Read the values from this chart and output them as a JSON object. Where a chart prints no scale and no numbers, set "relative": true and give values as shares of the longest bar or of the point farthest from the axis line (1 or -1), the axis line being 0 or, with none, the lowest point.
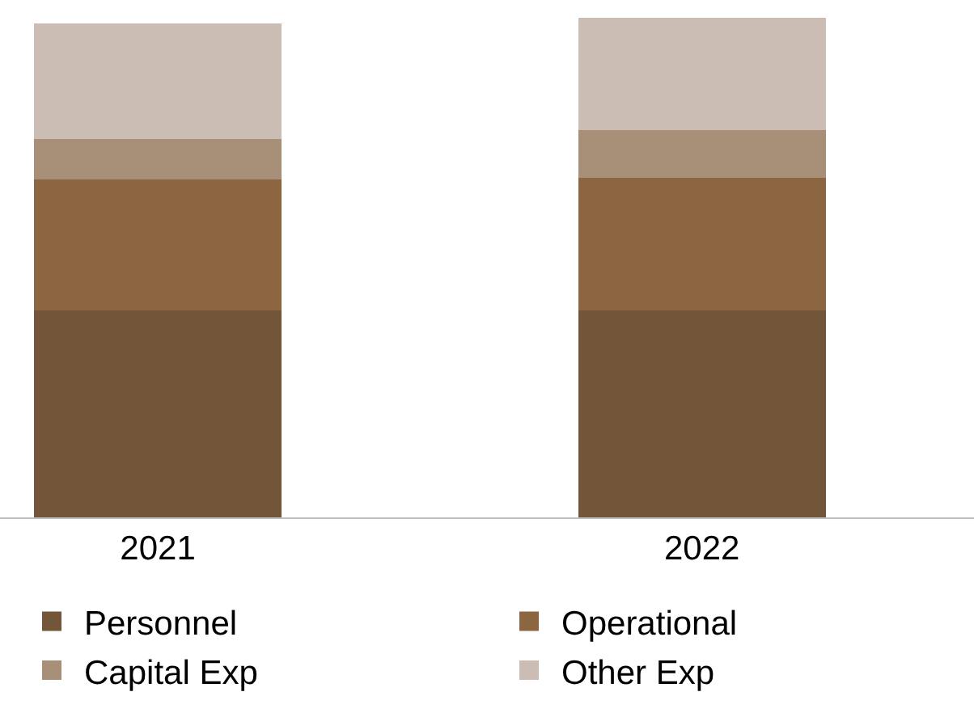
{
  "chart_data": {
    "type": "bar",
    "stacked": true,
    "relative": true,
    "categories": [
      "2021",
      "2022"
    ],
    "series": [
      {
        "name": "Personnel",
        "color": "#735539",
        "values": [
          0.415,
          0.415
        ]
      },
      {
        "name": "Operational",
        "color": "#8b6640",
        "values": [
          0.262,
          0.265
        ]
      },
      {
        "name": "Capital Exp",
        "color": "#a89078",
        "values": [
          0.08,
          0.096
        ]
      },
      {
        "name": "Other Exp",
        "color": "#cbbdb3",
        "values": [
          0.233,
          0.224
        ]
      }
    ],
    "legend": "bottom"
  }
}
